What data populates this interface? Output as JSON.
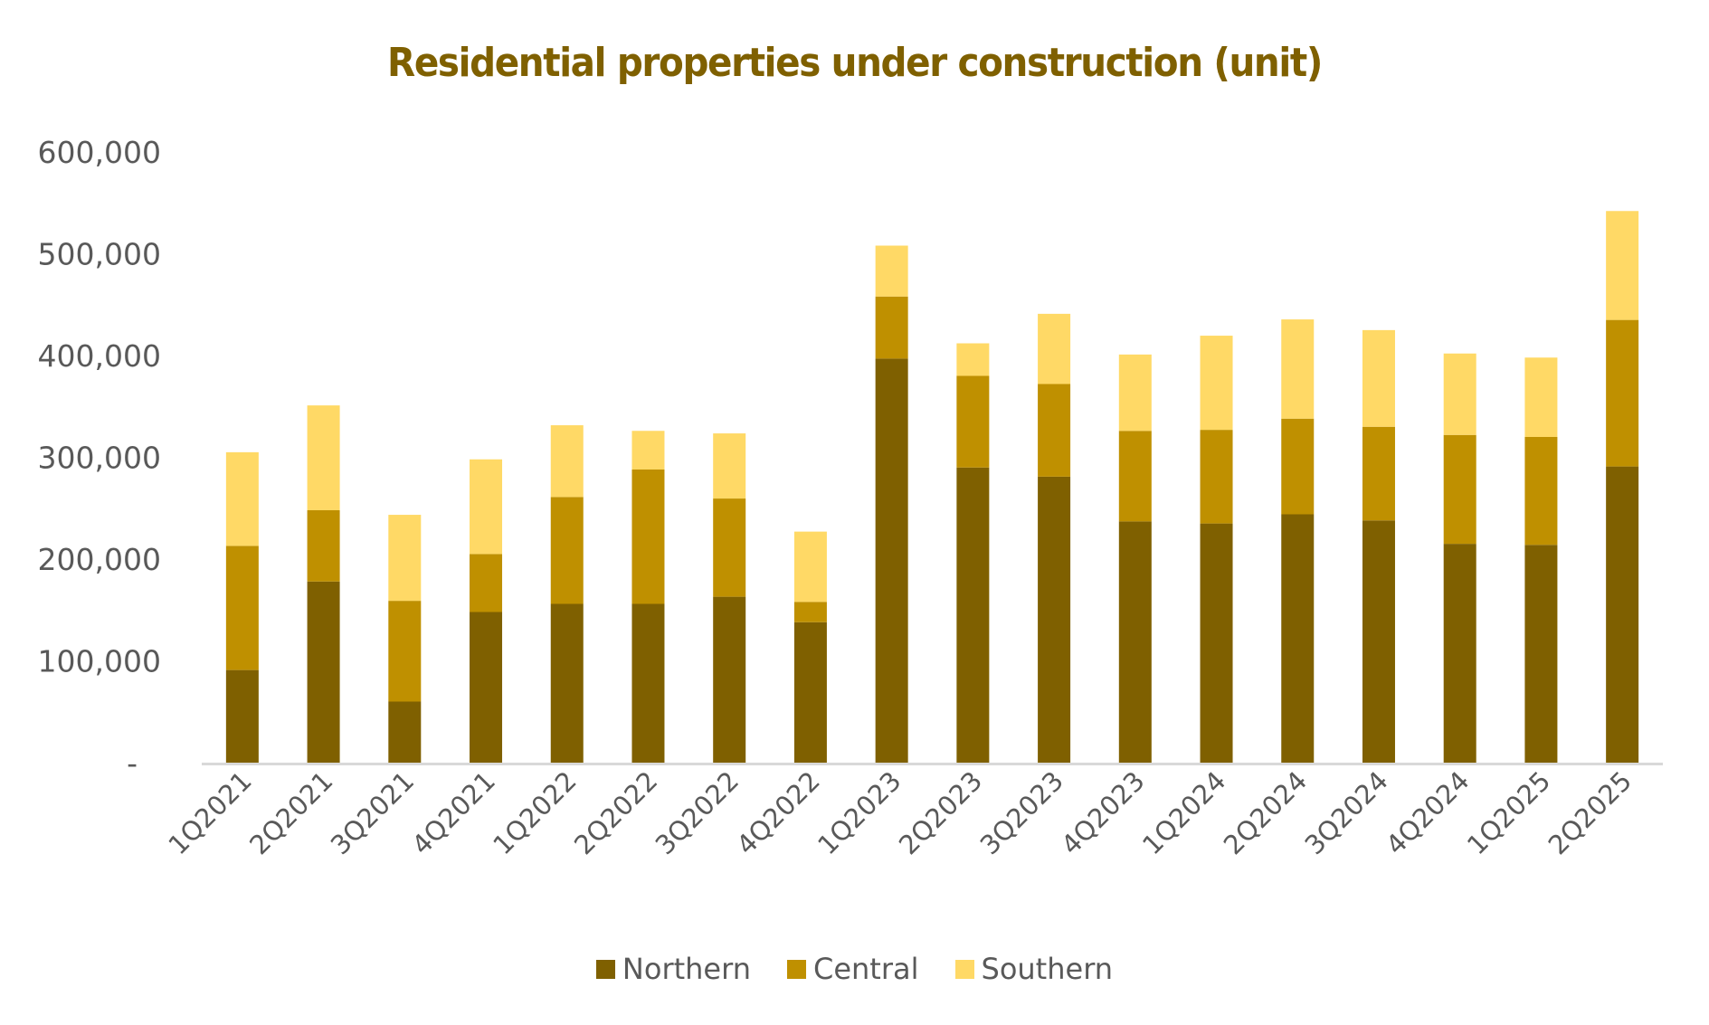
{
  "chart_data": {
    "type": "bar",
    "stacked": true,
    "title": "Residential properties under construction (unit)",
    "xlabel": "",
    "ylabel": "",
    "ylim": [
      0,
      600000
    ],
    "yticks": [
      0,
      100000,
      200000,
      300000,
      400000,
      500000,
      600000
    ],
    "ytick_labels": [
      "-",
      "100,000",
      "200,000",
      "300,000",
      "400,000",
      "500,000",
      "600,000"
    ],
    "grid": false,
    "legend_position": "bottom",
    "categories": [
      "1Q2021",
      "2Q2021",
      "3Q2021",
      "4Q2021",
      "1Q2022",
      "2Q2022",
      "3Q2022",
      "4Q2022",
      "1Q2023",
      "2Q2023",
      "3Q2023",
      "4Q2023",
      "1Q2024",
      "2Q2024",
      "3Q2024",
      "4Q2024",
      "1Q2025",
      "2Q2025"
    ],
    "series": [
      {
        "name": "Northern",
        "color": "#7F6000",
        "values": [
          91000,
          178000,
          60000,
          148000,
          156000,
          156000,
          163000,
          138000,
          397000,
          290000,
          281000,
          237000,
          235000,
          244000,
          238000,
          215000,
          214000,
          291000
        ]
      },
      {
        "name": "Central",
        "color": "#BF9000",
        "values": [
          122000,
          70000,
          99000,
          57000,
          105000,
          132000,
          96500,
          20000,
          61000,
          90000,
          91000,
          89000,
          92000,
          94000,
          92000,
          107000,
          106000,
          144000
        ]
      },
      {
        "name": "Southern",
        "color": "#FFD966",
        "values": [
          92000,
          103000,
          84500,
          93000,
          70500,
          38000,
          64000,
          69000,
          50000,
          32000,
          69000,
          75000,
          92500,
          97500,
          95000,
          80000,
          78000,
          107000
        ]
      }
    ]
  }
}
